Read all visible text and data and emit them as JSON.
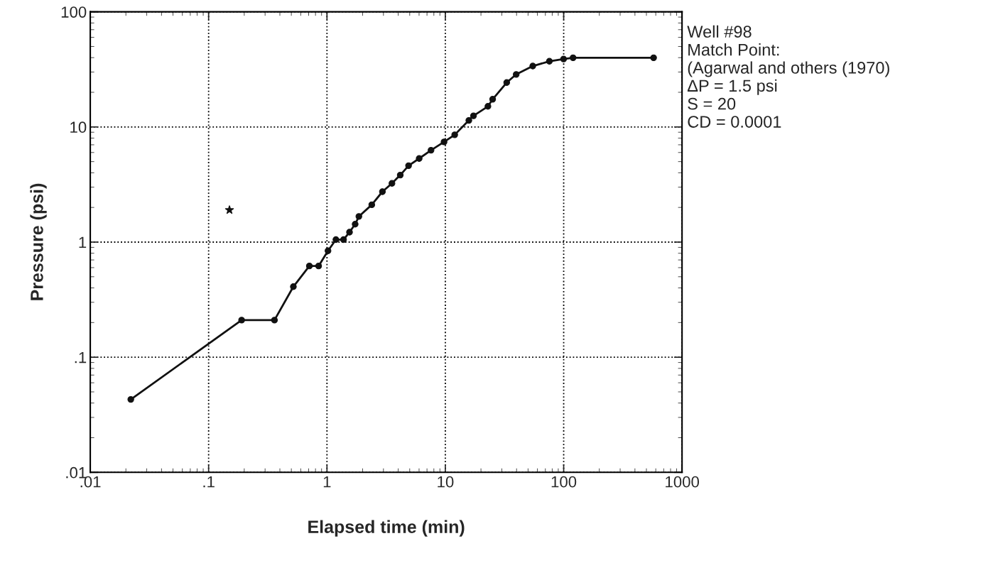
{
  "chart_data": {
    "type": "line",
    "xlabel": "Elapsed time (min)",
    "ylabel": "Pressure (psi)",
    "log": "xy",
    "grid": true,
    "legend": false,
    "marker": "circle",
    "line_style": "solid",
    "xlim": [
      0.01,
      1000
    ],
    "ylim": [
      0.01,
      100
    ],
    "xticks": [
      {
        "value": 0.01,
        "label": ".01"
      },
      {
        "value": 0.1,
        "label": ".1"
      },
      1,
      10,
      100,
      1000
    ],
    "yticks": [
      {
        "value": 0.01,
        "label": ".01"
      },
      {
        "value": 0.1,
        "label": ".1"
      },
      1,
      10,
      100
    ],
    "series": [
      {
        "color": "#111111",
        "x": [
          0.022,
          0.19,
          0.36,
          0.52,
          0.71,
          0.85,
          1.02,
          1.19,
          1.38,
          1.55,
          1.73,
          1.86,
          2.39,
          2.94,
          3.54,
          4.16,
          4.89,
          6.01,
          7.57,
          9.75,
          12.0,
          15.8,
          17.3,
          22.9,
          25.1,
          33.0,
          39.7,
          54.8,
          75.7,
          99.8,
          120,
          575
        ],
        "values": [
          0.043,
          0.21,
          0.21,
          0.41,
          0.62,
          0.62,
          0.84,
          1.05,
          1.05,
          1.22,
          1.43,
          1.67,
          2.11,
          2.74,
          3.24,
          3.82,
          4.61,
          5.32,
          6.28,
          7.41,
          8.55,
          11.4,
          12.5,
          15.1,
          17.4,
          24.3,
          28.6,
          33.8,
          37.2,
          38.9,
          39.9,
          39.9
        ]
      },
      {
        "type": "scatter",
        "marker": "star",
        "color": "#111111",
        "x": [
          0.15
        ],
        "values": [
          1.9
        ]
      }
    ],
    "annotations": [
      "Well #98",
      "Match Point:",
      "(Agarwal and others (1970)",
      "ΔP = 1.5 psi",
      "S = 20",
      "CD = 0.0001"
    ]
  }
}
